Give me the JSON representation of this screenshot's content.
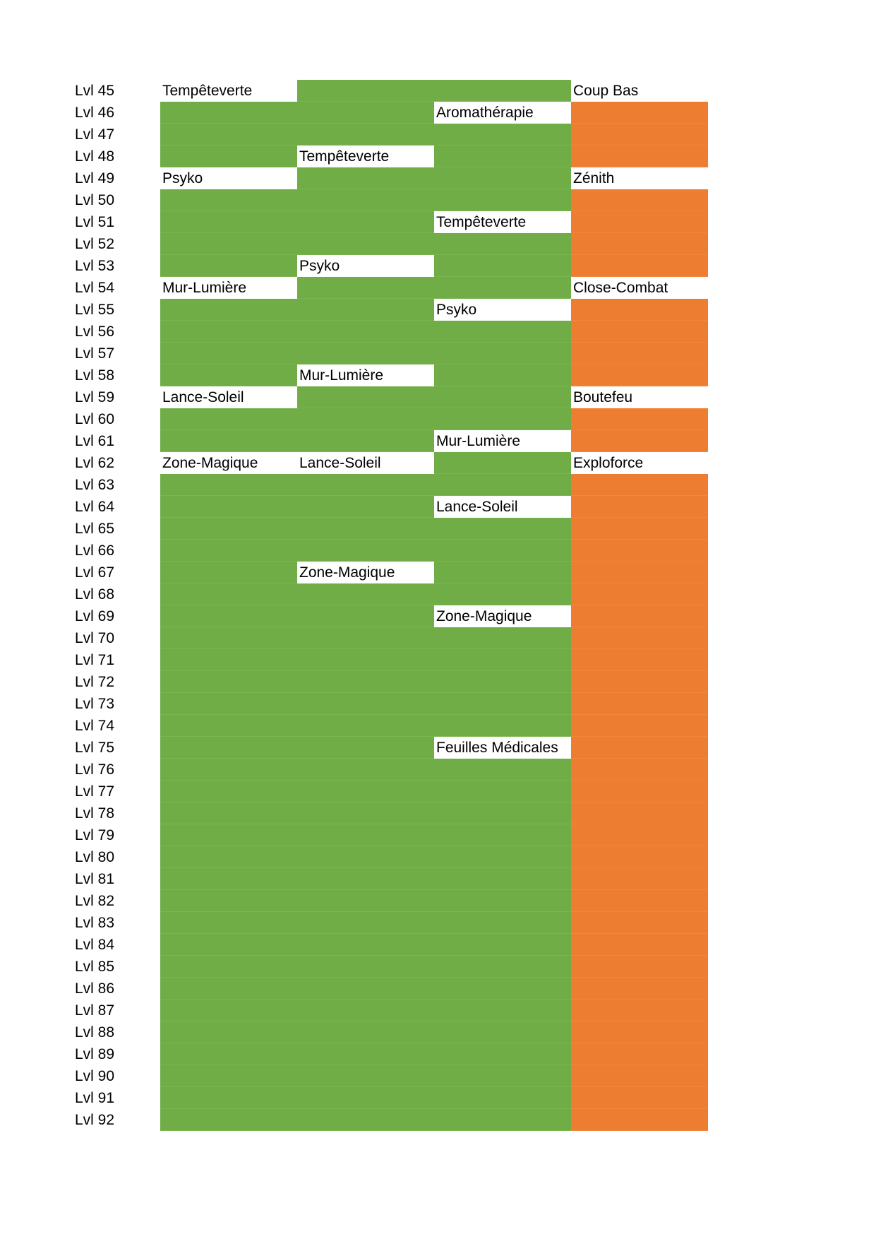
{
  "first_level": 45,
  "levels": [
    "Lvl 45",
    "Lvl 46",
    "Lvl 47",
    "Lvl 48",
    "Lvl 49",
    "Lvl 50",
    "Lvl 51",
    "Lvl 52",
    "Lvl 53",
    "Lvl 54",
    "Lvl 55",
    "Lvl 56",
    "Lvl 57",
    "Lvl 58",
    "Lvl 59",
    "Lvl 60",
    "Lvl 61",
    "Lvl 62",
    "Lvl 63",
    "Lvl 64",
    "Lvl 65",
    "Lvl 66",
    "Lvl 67",
    "Lvl 68",
    "Lvl 69",
    "Lvl 70",
    "Lvl 71",
    "Lvl 72",
    "Lvl 73",
    "Lvl 74",
    "Lvl 75",
    "Lvl 76",
    "Lvl 77",
    "Lvl 78",
    "Lvl 79",
    "Lvl 80",
    "Lvl 81",
    "Lvl 82",
    "Lvl 83",
    "Lvl 84",
    "Lvl 85",
    "Lvl 86",
    "Lvl 87",
    "Lvl 88",
    "Lvl 89",
    "Lvl 90",
    "Lvl 91",
    "Lvl 92"
  ],
  "columns": [
    {
      "fill": "#70ad47",
      "moves": [
        {
          "level": 45,
          "name": "Tempêteverte"
        },
        {
          "level": 49,
          "name": "Psyko"
        },
        {
          "level": 54,
          "name": "Mur-Lumière"
        },
        {
          "level": 59,
          "name": "Lance-Soleil"
        },
        {
          "level": 62,
          "name": "Zone-Magique"
        }
      ]
    },
    {
      "fill": "#70ad47",
      "moves": [
        {
          "level": 48,
          "name": "Tempêteverte"
        },
        {
          "level": 53,
          "name": "Psyko"
        },
        {
          "level": 58,
          "name": "Mur-Lumière"
        },
        {
          "level": 62,
          "name": "Lance-Soleil"
        },
        {
          "level": 67,
          "name": "Zone-Magique"
        }
      ]
    },
    {
      "fill": "#70ad47",
      "moves": [
        {
          "level": 46,
          "name": "Aromathérapie"
        },
        {
          "level": 51,
          "name": "Tempêteverte"
        },
        {
          "level": 55,
          "name": "Psyko"
        },
        {
          "level": 61,
          "name": "Mur-Lumière"
        },
        {
          "level": 64,
          "name": "Lance-Soleil"
        },
        {
          "level": 69,
          "name": "Zone-Magique"
        },
        {
          "level": 75,
          "name": "Feuilles Médicales"
        }
      ]
    },
    {
      "fill": "#ed7d31",
      "moves": [
        {
          "level": 45,
          "name": "Coup Bas"
        },
        {
          "level": 49,
          "name": "Zénith"
        },
        {
          "level": 54,
          "name": "Close-Combat"
        },
        {
          "level": 59,
          "name": "Boutefeu"
        },
        {
          "level": 62,
          "name": "Exploforce"
        }
      ]
    }
  ]
}
